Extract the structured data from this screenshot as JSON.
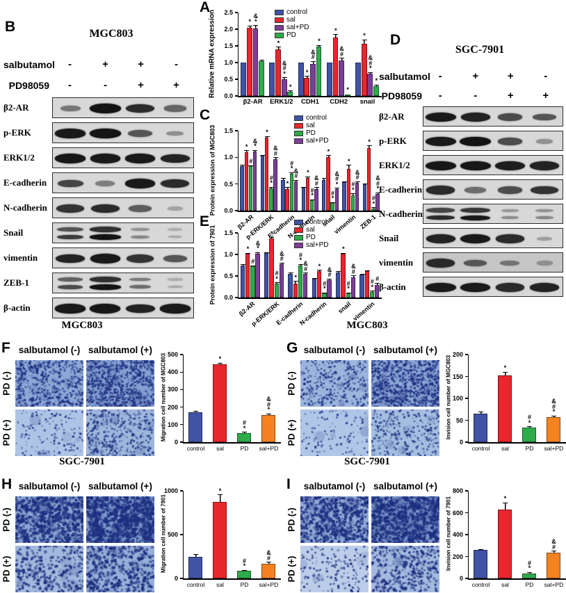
{
  "colors": {
    "control_blue": "#4053a4",
    "sal_red": "#e8262d",
    "pd_green": "#2eab4b",
    "salpd_purple": "#7b3f97",
    "salpd_orange": "#f5821f",
    "blot_band": "#141414",
    "blot_background": "#d8d8d8",
    "micrograph_dot": "#1e2f80"
  },
  "panels": {
    "A": {
      "letter": "A"
    },
    "B": {
      "letter": "B",
      "title": "MGC803",
      "treatments": [
        {
          "name": "salbutamol",
          "signs": [
            "-",
            "+",
            "+",
            "-"
          ]
        },
        {
          "name": "PD98059",
          "signs": [
            "-",
            "-",
            "+",
            "+"
          ]
        }
      ],
      "rows": [
        {
          "label": "β2-AR",
          "bands": [
            0.35,
            0.95,
            0.8,
            0.45
          ]
        },
        {
          "label": "p-ERK",
          "bands": [
            0.9,
            0.95,
            0.55,
            0.2
          ]
        },
        {
          "label": "ERK1/2",
          "bands": [
            0.92,
            0.9,
            0.9,
            0.85
          ]
        },
        {
          "label": "E-cadherin",
          "bands": [
            0.65,
            0.3,
            0.9,
            0.8
          ]
        },
        {
          "label": "N-cadherin",
          "bands": [
            0.75,
            0.8,
            0.5,
            0.08
          ]
        },
        {
          "label": "Snail",
          "bands": [
            0.7,
            0.95,
            0.25,
            0.04
          ],
          "double": true
        },
        {
          "label": "vimentin",
          "bands": [
            0.85,
            0.9,
            0.75,
            0.55
          ]
        },
        {
          "label": "ZEB-1",
          "bands": [
            0.6,
            0.95,
            0.4,
            0.06
          ],
          "double": true
        },
        {
          "label": "β-actin",
          "bands": [
            0.9,
            0.92,
            0.85,
            0.9
          ]
        }
      ]
    },
    "C": {
      "letter": "C"
    },
    "D": {
      "letter": "D",
      "title": "SGC-7901",
      "treatments": [
        {
          "name": "salbutamol",
          "signs": [
            "-",
            "+",
            "+",
            "-"
          ]
        },
        {
          "name": "PD98059",
          "signs": [
            "-",
            "-",
            "+",
            "+"
          ]
        }
      ],
      "rows": [
        {
          "label": "β2-AR",
          "bands": [
            0.9,
            0.85,
            0.6,
            0.55
          ]
        },
        {
          "label": "p-ERK",
          "bands": [
            0.9,
            0.95,
            0.6,
            0.18
          ]
        },
        {
          "label": "ERK1/2",
          "bands": [
            0.92,
            0.92,
            0.88,
            0.85
          ]
        },
        {
          "label": "E-cadherin",
          "bands": [
            0.8,
            0.4,
            0.6,
            0.75
          ]
        },
        {
          "label": "N-cadherin",
          "bands": [
            0.8,
            0.9,
            0.2,
            0.25
          ],
          "double": true
        },
        {
          "label": "Snail",
          "bands": [
            0.85,
            0.9,
            0.8,
            0.1
          ]
        },
        {
          "label": "vimentin",
          "bands": [
            0.8,
            0.5,
            0.3,
            0.12
          ],
          "noisy": true
        },
        {
          "label": "β-actin",
          "bands": [
            0.9,
            0.9,
            0.8,
            0.85
          ]
        }
      ]
    },
    "E": {
      "letter": "E"
    }
  },
  "transwell": {
    "F": {
      "letter": "F",
      "title": "MGC803",
      "col_labels": [
        "salbutamol (-)",
        "salbutamol (+)"
      ],
      "row_labels": [
        "PD (-)",
        "PD (+)"
      ],
      "images": [
        {
          "bg": "#8ba7d6",
          "n": 500,
          "rmax": 2.0,
          "blobs": 12
        },
        {
          "bg": "#84a0d2",
          "n": 760,
          "rmax": 2.0,
          "blobs": 18
        },
        {
          "bg": "#aec4e6",
          "n": 150,
          "rmax": 1.8,
          "blobs": 4
        },
        {
          "bg": "#9db6dc",
          "n": 380,
          "rmax": 1.9,
          "blobs": 8
        }
      ]
    },
    "G": {
      "letter": "G",
      "title": "MGC803",
      "col_labels": [
        "salbutamol (-)",
        "salbutamol (+)"
      ],
      "row_labels": [
        "PD (-)",
        "PD (+)"
      ],
      "images": [
        {
          "bg": "#9cb5dd",
          "n": 330,
          "rmax": 1.9,
          "blobs": 8
        },
        {
          "bg": "#8aa5d5",
          "n": 800,
          "rmax": 2.0,
          "blobs": 18
        },
        {
          "bg": "#b0c6e7",
          "n": 120,
          "rmax": 1.8,
          "blobs": 4
        },
        {
          "bg": "#a5bde0",
          "n": 280,
          "rmax": 1.9,
          "blobs": 6
        }
      ]
    },
    "H": {
      "letter": "H",
      "title": "SGC-7901",
      "col_labels": [
        "salbutamol (-)",
        "salbutamol (+)"
      ],
      "row_labels": [
        "PD (-)",
        "PD (+)"
      ],
      "images": [
        {
          "bg": "#8aa5d3",
          "n": 700,
          "rmax": 2.8,
          "blobs": 45
        },
        {
          "bg": "#7f9cce",
          "n": 900,
          "rmax": 3.0,
          "blobs": 65
        },
        {
          "bg": "#a2b9dd",
          "n": 300,
          "rmax": 2.4,
          "blobs": 10
        },
        {
          "bg": "#97afd8",
          "n": 450,
          "rmax": 2.6,
          "blobs": 14
        }
      ]
    },
    "I": {
      "letter": "I",
      "title": "SGC-7901",
      "col_labels": [
        "salbutamol (-)",
        "salbutamol (+)"
      ],
      "row_labels": [
        "PD (-)",
        "PD (+)"
      ],
      "images": [
        {
          "bg": "#93abd8",
          "n": 650,
          "rmax": 2.6,
          "blobs": 30
        },
        {
          "bg": "#7f99cd",
          "n": 850,
          "rmax": 2.8,
          "blobs": 55
        },
        {
          "bg": "#bccde9",
          "n": 160,
          "rmax": 2.0,
          "blobs": 5
        },
        {
          "bg": "#a3badf",
          "n": 380,
          "rmax": 2.4,
          "blobs": 10
        }
      ]
    }
  },
  "chart_data": [
    {
      "id": "A",
      "type": "bar",
      "title": "",
      "ylabel": "Relative mRNA expression",
      "ylim": [
        0,
        2.5
      ],
      "ystep": 0.5,
      "decimals": 1,
      "categories": [
        "β2-AR",
        "ERK1/2",
        "CDH1",
        "CDH2",
        "snail"
      ],
      "legend_position": "top-center",
      "grid": false,
      "series": [
        {
          "name": "control",
          "color": "#4053a4",
          "values": [
            1.0,
            1.0,
            1.0,
            1.0,
            1.0
          ],
          "err": [
            0,
            0,
            0,
            0,
            0
          ],
          "ann": [
            "",
            "",
            "",
            "",
            ""
          ]
        },
        {
          "name": "sal",
          "color": "#e8262d",
          "values": [
            2.05,
            1.4,
            0.55,
            1.75,
            1.57
          ],
          "err": [
            0.06,
            0.07,
            0.05,
            0.1,
            0.12
          ],
          "ann": [
            "*",
            "*",
            "*",
            "*",
            "*"
          ]
        },
        {
          "name": "sal+PD",
          "color": "#7b3f97",
          "values": [
            2.02,
            0.5,
            0.95,
            1.06,
            0.66
          ],
          "err": [
            0.1,
            0.06,
            0.1,
            0.08,
            0.05
          ],
          "ann": [
            "&\n*",
            "&\n#\n*",
            "&\n#",
            "&\n#",
            "&\n#\n*"
          ]
        },
        {
          "name": "PD",
          "color": "#2eab4b",
          "values": [
            1.05,
            0.12,
            1.47,
            0.05,
            0.3
          ],
          "err": [
            0.04,
            0.04,
            0.06,
            0.02,
            0.04
          ],
          "ann": [
            "",
            "*",
            "*",
            "*",
            "*"
          ]
        }
      ]
    },
    {
      "id": "C",
      "type": "bar",
      "title": "",
      "ylabel": "Protein expression of MGC803",
      "ylim": [
        0,
        1.5
      ],
      "ystep": 0.5,
      "decimals": 1,
      "categories": [
        "β2-AR",
        "p-ERK/ERK",
        "E-cadherin",
        "N-cadherin",
        "snail",
        "vimentin",
        "ZEB-1"
      ],
      "legend_position": "top-right",
      "grid": false,
      "x_labels_rotated": true,
      "series": [
        {
          "name": "control",
          "color": "#4053a4",
          "values": [
            0.84,
            1.03,
            0.58,
            0.43,
            0.58,
            0.53,
            0.49
          ],
          "err": [
            0.02,
            0.02,
            0.03,
            0.02,
            0.03,
            0.02,
            0.02
          ],
          "ann": [
            "",
            "",
            "",
            "",
            "",
            "",
            ""
          ]
        },
        {
          "name": "sal",
          "color": "#e8262d",
          "values": [
            1.1,
            1.37,
            0.4,
            0.61,
            1.01,
            0.78,
            1.17
          ],
          "err": [
            0.03,
            0.03,
            0.04,
            0.03,
            0.03,
            0.08,
            0.05
          ],
          "ann": [
            "*",
            "*",
            "*",
            "*",
            "*",
            "*",
            "*"
          ]
        },
        {
          "name": "PD",
          "color": "#2eab4b",
          "values": [
            0.83,
            0.42,
            0.69,
            0.19,
            0.14,
            0.29,
            0.04
          ],
          "err": [
            0.02,
            0.03,
            0.03,
            0.02,
            0.02,
            0.03,
            0.02
          ],
          "ann": [
            "#",
            "#\n*",
            "#\n*",
            "#\n*",
            "#\n*",
            "#\n*",
            "#\n*"
          ]
        },
        {
          "name": "sal+PD",
          "color": "#7b3f97",
          "values": [
            1.11,
            0.97,
            0.55,
            0.41,
            0.4,
            0.52,
            0.31
          ],
          "err": [
            0.03,
            0.03,
            0.03,
            0.03,
            0.03,
            0.03,
            0.03
          ],
          "ann": [
            "&\n*",
            "&\n#",
            "&\n#",
            "&\n#",
            "&\n#\n*",
            "&\n#",
            "&\n#\n*"
          ]
        }
      ]
    },
    {
      "id": "E",
      "type": "bar",
      "title": "",
      "ylabel": "Protein expression of 7901",
      "ylim": [
        0,
        1.5
      ],
      "ystep": 0.5,
      "decimals": 1,
      "categories": [
        "β2-AR",
        "p-ERK/ERK",
        "E-cadherin",
        "N-cadherin",
        "snail",
        "vimentin"
      ],
      "legend_position": "top-right",
      "grid": false,
      "x_labels_rotated": true,
      "series": [
        {
          "name": "control",
          "color": "#4053a4",
          "values": [
            0.75,
            1.03,
            0.55,
            0.43,
            0.58,
            0.53
          ],
          "err": [
            0.03,
            0.02,
            0.03,
            0.02,
            0.03,
            0.02
          ],
          "ann": [
            "",
            "",
            "",
            "",
            "",
            ""
          ]
        },
        {
          "name": "sal",
          "color": "#e8262d",
          "values": [
            1.01,
            1.37,
            0.32,
            0.61,
            1.01,
            0.61
          ],
          "err": [
            0.03,
            0.03,
            0.06,
            0.03,
            0.03,
            0.02
          ],
          "ann": [
            "*",
            "*",
            "*",
            "*",
            "*",
            ""
          ]
        },
        {
          "name": "PD",
          "color": "#2eab4b",
          "values": [
            0.72,
            0.32,
            0.74,
            0.1,
            0.1,
            0.13
          ],
          "err": [
            0.03,
            0.03,
            0.04,
            0.02,
            0.02,
            0.03
          ],
          "ann": [
            "#",
            "#\n*",
            "#\n*",
            "#\n*",
            "#\n*",
            "#\n*"
          ]
        },
        {
          "name": "sal+PD",
          "color": "#7b3f97",
          "values": [
            1.02,
            0.78,
            0.55,
            0.41,
            0.46,
            0.29
          ],
          "err": [
            0.03,
            0.03,
            0.03,
            0.03,
            0.05,
            0.05
          ],
          "ann": [
            "&\n*",
            "&\n#",
            "&\n#",
            "&\n#",
            "&\n#",
            "#"
          ]
        }
      ]
    },
    {
      "id": "F",
      "type": "bar",
      "title": "",
      "ylabel": "Migration cell number of MGC803",
      "ylim": [
        0,
        500
      ],
      "ystep": 100,
      "decimals": 0,
      "categories": [
        "control",
        "sal",
        "PD",
        "sal+PD"
      ],
      "grid": false,
      "series": [
        {
          "name": "cells",
          "colors": [
            "#4053a4",
            "#e8262d",
            "#2eab4b",
            "#f5821f"
          ],
          "values": [
            170,
            445,
            52,
            155
          ],
          "err": [
            8,
            8,
            6,
            8
          ],
          "ann": [
            "",
            "*",
            "#\n*",
            "&\n#\n*"
          ]
        }
      ]
    },
    {
      "id": "G",
      "type": "bar",
      "title": "",
      "ylabel": "Invision cell number of MGC803",
      "ylim": [
        0,
        200
      ],
      "ystep": 50,
      "decimals": 0,
      "categories": [
        "control",
        "sal",
        "PD",
        "sal+PD"
      ],
      "grid": false,
      "series": [
        {
          "name": "cells",
          "colors": [
            "#4053a4",
            "#e8262d",
            "#2eab4b",
            "#f5821f"
          ],
          "values": [
            65,
            152,
            33,
            57
          ],
          "err": [
            5,
            9,
            3,
            4
          ],
          "ann": [
            "",
            "*",
            "#\n*",
            "&\n#\n*"
          ]
        }
      ]
    },
    {
      "id": "H",
      "type": "bar",
      "title": "",
      "ylabel": "Migration cell number of 7901",
      "ylim": [
        0,
        1000
      ],
      "ystep": 500,
      "decimals": 0,
      "categories": [
        "control",
        "sal",
        "PD",
        "sal+PD"
      ],
      "grid": false,
      "series": [
        {
          "name": "cells",
          "colors": [
            "#4053a4",
            "#e8262d",
            "#2eab4b",
            "#f5821f"
          ],
          "values": [
            250,
            870,
            85,
            170
          ],
          "err": [
            25,
            90,
            12,
            18
          ],
          "ann": [
            "",
            "*",
            "#\n*",
            "&\n#"
          ]
        }
      ]
    },
    {
      "id": "I",
      "type": "bar",
      "title": "",
      "ylabel": "Invision cell number of 7901",
      "ylim": [
        0,
        800
      ],
      "ystep": 200,
      "decimals": 0,
      "categories": [
        "control",
        "sal",
        "PD",
        "sal+PD"
      ],
      "grid": false,
      "series": [
        {
          "name": "cells",
          "colors": [
            "#4053a4",
            "#e8262d",
            "#2eab4b",
            "#f5821f"
          ],
          "values": [
            260,
            630,
            45,
            235
          ],
          "err": [
            8,
            65,
            15,
            18
          ],
          "ann": [
            "",
            "*",
            "#\n*",
            "&\n#"
          ]
        }
      ]
    }
  ]
}
